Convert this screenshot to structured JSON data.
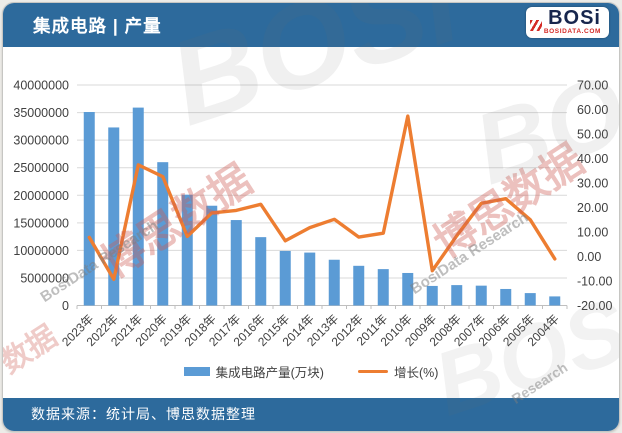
{
  "header": {
    "title": "集成电路 | 产量",
    "logo_text": "BOSi",
    "logo_sub": "BOSIDATA.COM"
  },
  "footer": {
    "source": "数据来源：统计局、博思数据整理"
  },
  "colors": {
    "header_bg": "#2d6a9c",
    "bar": "#5b9bd5",
    "line": "#ed7d31",
    "grid": "#d9d9d9",
    "axis": "#bfbfbf",
    "axis_text": "#404040",
    "logo_red": "#d42b26",
    "logo_navy": "#17264d"
  },
  "watermarks": [
    {
      "text": "博思数据"
    },
    {
      "text": "BosiData Research"
    },
    {
      "text": "博思数据"
    },
    {
      "text": "BosiData Research"
    },
    {
      "text": "BOSi"
    },
    {
      "text": "BOSi"
    },
    {
      "text": "Research"
    },
    {
      "text": "数据"
    },
    {
      "text": "BOSi"
    }
  ],
  "chart_data": {
    "type": "bar",
    "title": "集成电路 | 产量",
    "categories": [
      "2023年",
      "2022年",
      "2021年",
      "2020年",
      "2019年",
      "2018年",
      "2017年",
      "2016年",
      "2015年",
      "2014年",
      "2013年",
      "2012年",
      "2011年",
      "2010年",
      "2009年",
      "2008年",
      "2007年",
      "2006年",
      "2005年",
      "2004年"
    ],
    "series": [
      {
        "name": "集成电路产量(万块)",
        "type": "bar",
        "axis": "left",
        "values": [
          35100000,
          32300000,
          35900000,
          26000000,
          20100000,
          18100000,
          15500000,
          12400000,
          9900000,
          9600000,
          8300000,
          7200000,
          6600000,
          5900000,
          3550000,
          3700000,
          3600000,
          3000000,
          2250000,
          1650000
        ]
      },
      {
        "name": "增长(%)",
        "type": "line",
        "axis": "right",
        "values": [
          7.8,
          -9.3,
          37.4,
          32.6,
          8.2,
          17.8,
          18.8,
          21.3,
          6.4,
          11.8,
          15.2,
          7.9,
          9.5,
          57.3,
          -5.8,
          8.5,
          21.7,
          23.6,
          15.0,
          -1.0
        ]
      }
    ],
    "left_axis": {
      "min": 0,
      "max": 40000000,
      "step": 5000000,
      "labels": [
        "40000000",
        "35000000",
        "30000000",
        "25000000",
        "20000000",
        "15000000",
        "10000000",
        "5000000",
        "0"
      ]
    },
    "right_axis": {
      "min": -20,
      "max": 70,
      "step": 10,
      "labels": [
        "70.00",
        "60.00",
        "50.00",
        "40.00",
        "30.00",
        "20.00",
        "10.00",
        "0.00",
        "-10.00",
        "-20.00"
      ]
    },
    "grid": true,
    "legend_position": "bottom",
    "xlabel": "",
    "ylabel": ""
  }
}
